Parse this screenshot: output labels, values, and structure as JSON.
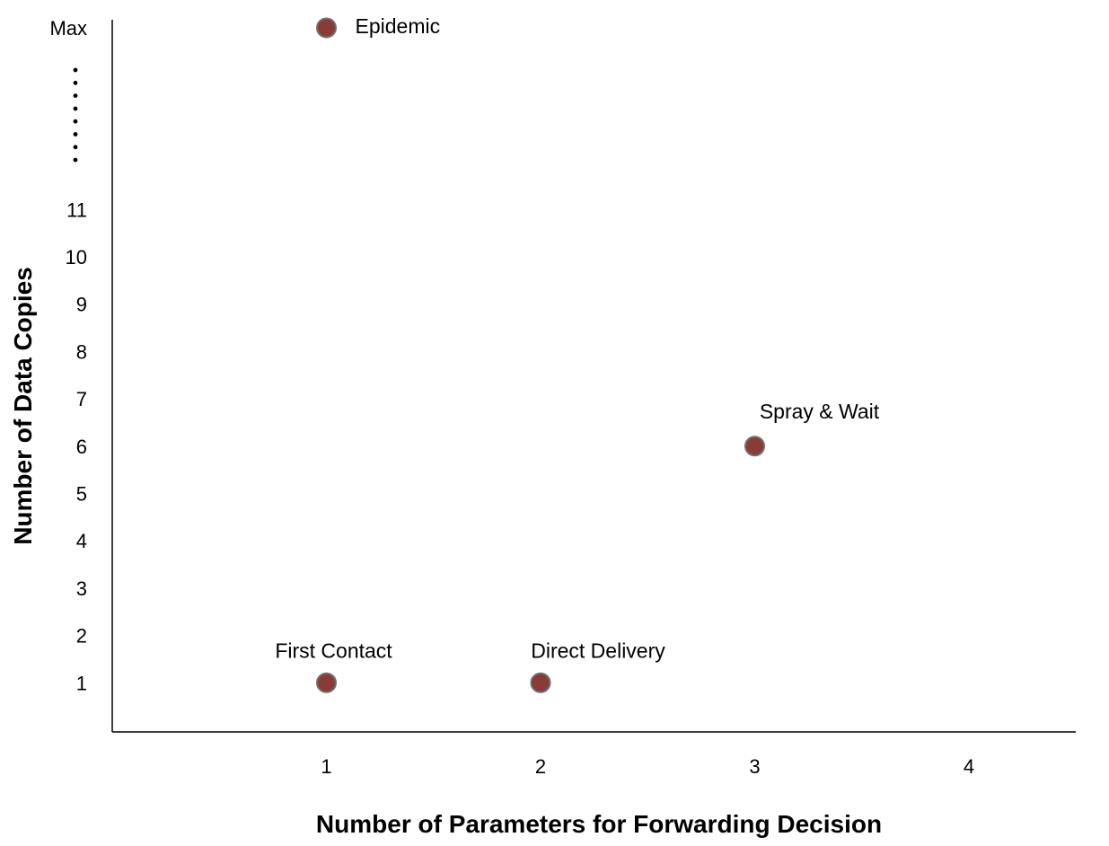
{
  "chart_data": {
    "type": "scatter",
    "title": "",
    "xlabel": "Number of Parameters for Forwarding Decision",
    "ylabel": "Number of Data Copies",
    "xlim": [
      0,
      4.5
    ],
    "ylim": [
      0,
      11
    ],
    "x_ticks": [
      1,
      2,
      3,
      4
    ],
    "y_ticks": [
      1,
      2,
      3,
      4,
      5,
      6,
      7,
      8,
      9,
      10,
      11
    ],
    "y_top_tick_label": "Max",
    "y_axis_break": true,
    "grid": false,
    "legend": "none",
    "marker_color": "#8b3a36",
    "marker_edge_color": "#6f6f6f",
    "points": [
      {
        "label": "Epidemic",
        "x": 1,
        "y": "Max"
      },
      {
        "label": "Spray & Wait",
        "x": 3,
        "y": 6
      },
      {
        "label": "First Contact",
        "x": 1,
        "y": 1
      },
      {
        "label": "Direct Delivery",
        "x": 2,
        "y": 1
      }
    ]
  }
}
